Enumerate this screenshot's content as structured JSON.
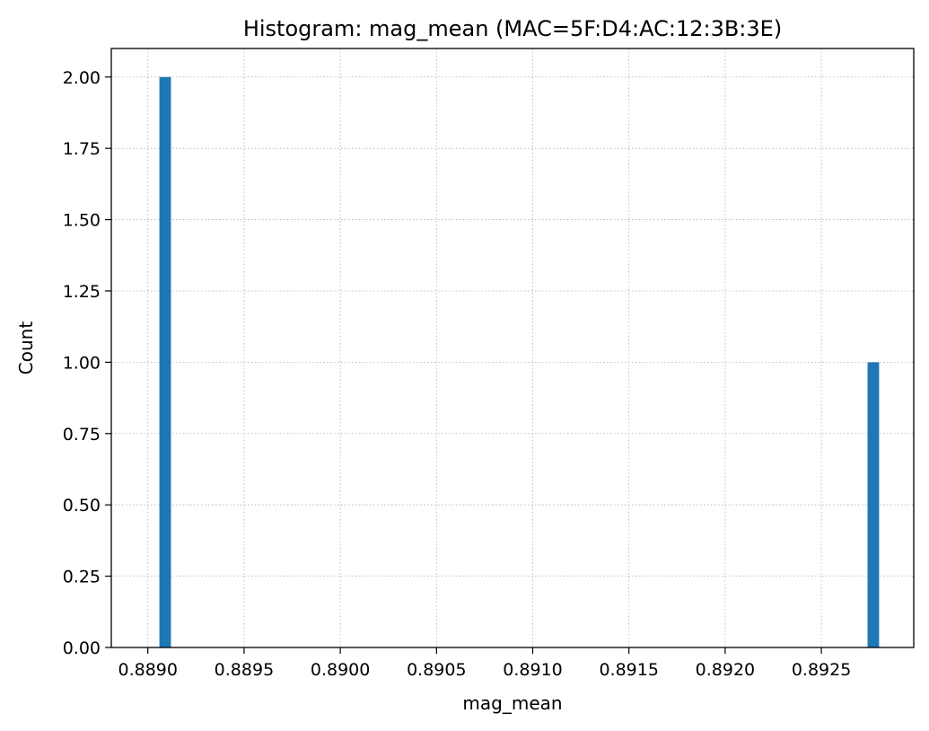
{
  "chart_data": {
    "type": "bar",
    "title": "Histogram: mag_mean (MAC=5F:D4:AC:12:3B:3E)",
    "xlabel": "mag_mean",
    "ylabel": "Count",
    "xlim": [
      0.88881,
      0.89298
    ],
    "ylim": [
      0,
      2.1
    ],
    "grid": true,
    "bar_color": "#1f77b4",
    "bins": [
      {
        "x0": 0.88906,
        "x1": 0.88912,
        "count": 2
      },
      {
        "x0": 0.89274,
        "x1": 0.8928,
        "count": 1
      }
    ],
    "xticks": [
      0.889,
      0.8895,
      0.89,
      0.8905,
      0.891,
      0.8915,
      0.892,
      0.8925
    ],
    "xtick_labels": [
      "0.8890",
      "0.8895",
      "0.8900",
      "0.8905",
      "0.8910",
      "0.8915",
      "0.8920",
      "0.8925"
    ],
    "yticks": [
      0,
      0.25,
      0.5,
      0.75,
      1,
      1.25,
      1.5,
      1.75,
      2
    ],
    "ytick_labels": [
      "0.00",
      "0.25",
      "0.50",
      "0.75",
      "1.00",
      "1.25",
      "1.50",
      "1.75",
      "2.00"
    ]
  }
}
